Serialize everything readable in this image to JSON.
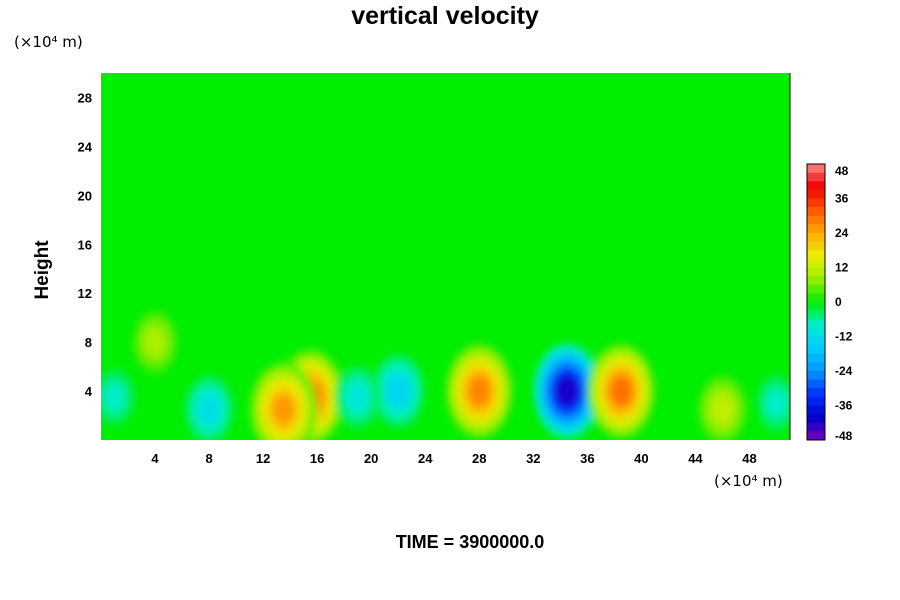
{
  "chart_data": {
    "type": "heatmap",
    "title": "vertical velocity",
    "ylabel": "Height",
    "xlabel": "",
    "x_unit": "(×10⁴ m)",
    "y_unit": "(×10⁴ m)",
    "xlim": [
      0,
      51
    ],
    "ylim": [
      0,
      30
    ],
    "x_ticks": [
      4,
      8,
      12,
      16,
      20,
      24,
      28,
      32,
      36,
      40,
      44,
      48
    ],
    "y_ticks": [
      4,
      8,
      12,
      16,
      20,
      24,
      28
    ],
    "colorbar": {
      "ticks": [
        48,
        36,
        24,
        12,
        0,
        -12,
        -24,
        -36,
        -48
      ],
      "range": [
        -48,
        48
      ],
      "position": "right"
    },
    "background_value": 0,
    "features": [
      {
        "x": 15.5,
        "y": 3.5,
        "value": 30
      },
      {
        "x": 13.5,
        "y": 2.5,
        "value": 26
      },
      {
        "x": 28,
        "y": 4,
        "value": 28
      },
      {
        "x": 34.5,
        "y": 4,
        "value": -42
      },
      {
        "x": 38.5,
        "y": 4,
        "value": 30
      },
      {
        "x": 46,
        "y": 2.5,
        "value": 12
      },
      {
        "x": 4,
        "y": 8,
        "value": 10
      },
      {
        "x": 8,
        "y": 2.5,
        "value": -12
      },
      {
        "x": 22,
        "y": 4,
        "value": -14
      },
      {
        "x": 19,
        "y": 3.5,
        "value": -10
      },
      {
        "x": 1,
        "y": 3.5,
        "value": -8
      },
      {
        "x": 50,
        "y": 3,
        "value": -8
      }
    ],
    "footer": "TIME = 3900000.0"
  }
}
